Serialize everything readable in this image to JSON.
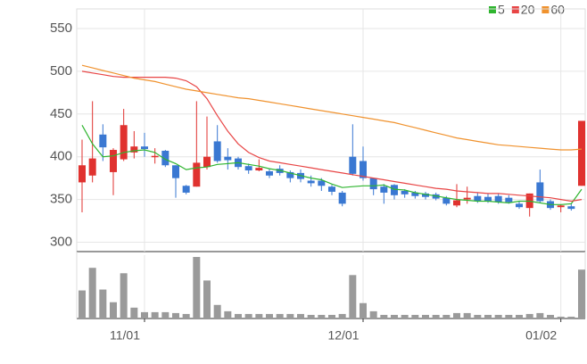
{
  "chart_data": {
    "type": "candlestick",
    "categories": [
      null,
      null,
      null,
      null,
      null,
      null,
      "11/01",
      null,
      null,
      null,
      null,
      null,
      null,
      null,
      null,
      null,
      null,
      null,
      null,
      null,
      null,
      null,
      null,
      null,
      null,
      null,
      null,
      "12/01",
      null,
      null,
      null,
      null,
      null,
      null,
      null,
      null,
      null,
      null,
      null,
      null,
      null,
      null,
      null,
      null,
      null,
      null,
      "01/02",
      null,
      null
    ],
    "open": [
      370,
      378,
      426,
      382,
      397,
      405,
      412,
      400,
      407,
      390,
      366,
      365,
      388,
      418,
      400,
      398,
      389,
      384,
      383,
      386,
      382,
      381,
      372,
      372,
      365,
      358,
      400,
      395,
      375,
      365,
      367,
      360,
      358,
      357,
      356,
      352,
      343,
      350,
      354,
      353,
      354,
      352,
      345,
      340,
      370,
      348,
      341,
      342,
      366
    ],
    "high": [
      420,
      465,
      438,
      410,
      456,
      430,
      428,
      410,
      408,
      390,
      367,
      465,
      447,
      437,
      410,
      400,
      392,
      397,
      386,
      390,
      384,
      385,
      378,
      375,
      367,
      360,
      438,
      412,
      375,
      368,
      368,
      362,
      360,
      359,
      358,
      354,
      368,
      365,
      358,
      357,
      357,
      355,
      348,
      357,
      385,
      350,
      344,
      345,
      442
    ],
    "low": [
      335,
      370,
      395,
      355,
      395,
      398,
      400,
      392,
      388,
      352,
      356,
      365,
      385,
      393,
      385,
      385,
      380,
      383,
      375,
      378,
      370,
      370,
      365,
      360,
      355,
      342,
      378,
      372,
      355,
      345,
      350,
      352,
      351,
      350,
      349,
      343,
      341,
      345,
      346,
      346,
      345,
      345,
      339,
      330,
      346,
      338,
      335,
      337,
      366
    ],
    "close": [
      390,
      398,
      411,
      408,
      437,
      412,
      409,
      401,
      390,
      375,
      358,
      393,
      400,
      395,
      396,
      388,
      384,
      387,
      378,
      381,
      375,
      374,
      369,
      366,
      359,
      345,
      380,
      375,
      362,
      358,
      355,
      356,
      354,
      353,
      351,
      345,
      349,
      352,
      348,
      348,
      347,
      347,
      341,
      357,
      348,
      340,
      343,
      339,
      442
    ],
    "volume": [
      31,
      56,
      32,
      18,
      50,
      12,
      7,
      7,
      7,
      6,
      5,
      68,
      42,
      15,
      8,
      5,
      5,
      5,
      5,
      5,
      5,
      5,
      4,
      4,
      4,
      5,
      48,
      17,
      8,
      4,
      4,
      4,
      4,
      4,
      4,
      4,
      6,
      6,
      4,
      4,
      4,
      4,
      4,
      5,
      6,
      4,
      2,
      2,
      54
    ],
    "up_color": "#e0322f",
    "down_color": "#3a78d2",
    "volume_color": "#9a9a9a",
    "moving_averages": [
      {
        "name": "5",
        "color": "#2fb52f",
        "values": [
          437,
          415,
          400,
          401,
          405,
          407,
          408,
          405,
          397,
          392,
          385,
          387,
          388,
          391,
          392,
          393,
          391,
          389,
          386,
          384,
          381,
          378,
          375,
          373,
          368,
          364,
          365,
          366,
          366,
          367,
          362,
          361,
          358,
          356,
          354,
          352,
          350,
          349,
          348,
          348,
          347,
          346,
          348,
          348,
          346,
          344,
          344,
          345,
          362
        ]
      },
      {
        "name": "20",
        "color": "#e84545",
        "values": [
          500,
          498,
          496,
          494,
          493,
          493,
          493,
          493,
          493,
          492,
          489,
          482,
          468,
          448,
          430,
          415,
          405,
          399,
          395,
          393,
          391,
          389,
          387,
          385,
          383,
          381,
          379,
          377,
          375,
          373,
          371,
          369,
          367,
          365,
          363,
          362,
          360,
          359,
          358,
          357,
          357,
          356,
          355,
          354,
          353,
          352,
          350,
          348,
          350
        ]
      },
      {
        "name": "60",
        "color": "#f0922e",
        "values": [
          507,
          504,
          501,
          498,
          495,
          492,
          490,
          488,
          485,
          482,
          479,
          477,
          475,
          473,
          471,
          469,
          468,
          466,
          464,
          462,
          460,
          458,
          456,
          454,
          452,
          450,
          448,
          446,
          444,
          442,
          440,
          437,
          434,
          431,
          428,
          425,
          422,
          420,
          418,
          416,
          414,
          413,
          412,
          411,
          410,
          409,
          408,
          408,
          409
        ]
      }
    ],
    "ylim": [
      289,
      573
    ],
    "yticks": [
      300,
      350,
      400,
      450,
      500,
      550
    ],
    "volume_ylim": [
      0,
      70
    ],
    "grid": true
  }
}
